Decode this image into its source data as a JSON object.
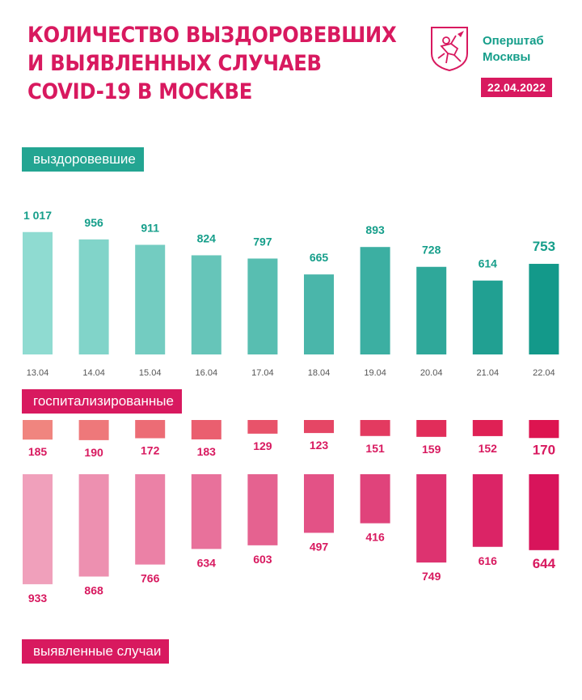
{
  "header": {
    "title_lines": [
      "Количество выздоровевших",
      "и выявленных случаев",
      "COVID-19 в Москве"
    ],
    "org_lines": [
      "Оперштаб",
      "Москвы"
    ],
    "date": "22.04.2022"
  },
  "labels": {
    "recovered": "выздоровевшие",
    "hospitalized": "госпитализированные",
    "detected": "выявленные случаи"
  },
  "colors": {
    "green_start": "#8fdbd1",
    "green_end": "#13998a",
    "hosp_start": "#f0857f",
    "hosp_end": "#dd1450",
    "det_start": "#f0a0bb",
    "det_end": "#d8145b",
    "value_green": "#159e8a",
    "value_pink": "#d8195f",
    "date_text": "#555555"
  },
  "chart_data": {
    "type": "bar",
    "categories": [
      "13.04",
      "14.04",
      "15.04",
      "16.04",
      "17.04",
      "18.04",
      "19.04",
      "20.04",
      "21.04",
      "22.04"
    ],
    "series": [
      {
        "name": "выздоровевшие",
        "values": [
          1017,
          956,
          911,
          824,
          797,
          665,
          893,
          728,
          614,
          753
        ],
        "labels": [
          "1 017",
          "956",
          "911",
          "824",
          "797",
          "665",
          "893",
          "728",
          "614",
          "753"
        ]
      },
      {
        "name": "госпитализированные",
        "values": [
          185,
          190,
          172,
          183,
          129,
          123,
          151,
          159,
          152,
          170
        ],
        "labels": [
          "185",
          "190",
          "172",
          "183",
          "129",
          "123",
          "151",
          "159",
          "152",
          "170"
        ]
      },
      {
        "name": "выявленные случаи",
        "values": [
          933,
          868,
          766,
          634,
          603,
          497,
          416,
          749,
          616,
          644
        ],
        "labels": [
          "933",
          "868",
          "766",
          "634",
          "603",
          "497",
          "416",
          "749",
          "616",
          "644"
        ]
      }
    ]
  }
}
